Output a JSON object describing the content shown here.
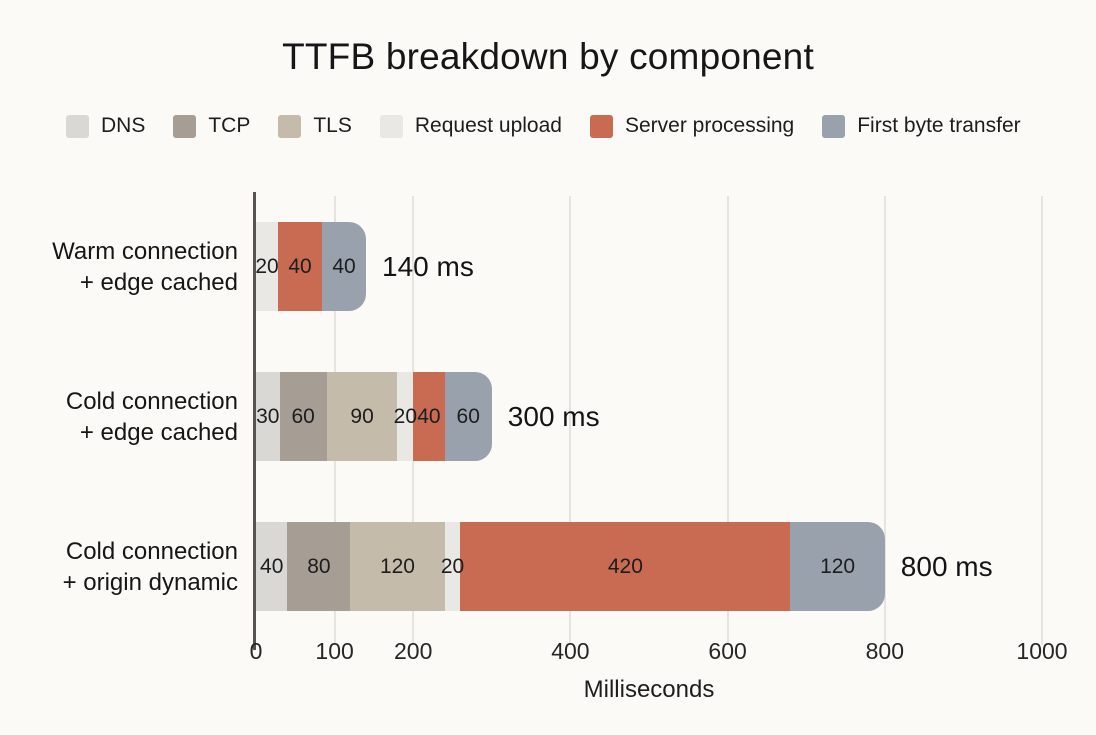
{
  "chart_data": {
    "type": "bar",
    "orientation": "horizontal-stacked",
    "title": "TTFB breakdown by component",
    "xlabel": "Milliseconds",
    "xlim": [
      0,
      1000
    ],
    "x_ticks": [
      0,
      100,
      200,
      400,
      600,
      800,
      1000
    ],
    "grid": true,
    "legend_position": "top-left",
    "categories": [
      "Warm connection + edge cached",
      "Cold connection + edge cached",
      "Cold connection + origin dynamic"
    ],
    "category_lines": [
      [
        "Warm connection",
        "+ edge cached"
      ],
      [
        "Cold connection",
        "+ edge cached"
      ],
      [
        "Cold connection",
        "+ origin dynamic"
      ]
    ],
    "series": [
      {
        "name": "DNS",
        "color": "#d9d8d5",
        "values": [
          0,
          30,
          40
        ]
      },
      {
        "name": "TCP",
        "color": "#a69d95",
        "values": [
          0,
          60,
          80
        ]
      },
      {
        "name": "TLS",
        "color": "#c4bbaa",
        "values": [
          0,
          90,
          120
        ]
      },
      {
        "name": "Request upload",
        "color": "#e9e8e4",
        "values": [
          20,
          20,
          20
        ]
      },
      {
        "name": "Server processing",
        "color": "#c96b53",
        "values": [
          40,
          40,
          420
        ]
      },
      {
        "name": "First byte transfer",
        "color": "#99a2ac",
        "values": [
          40,
          60,
          120
        ]
      }
    ],
    "totals_ms": [
      140,
      300,
      800
    ],
    "total_labels": [
      "140 ms",
      "300 ms",
      "800 ms"
    ]
  },
  "style_colors": {
    "background": "#fbfaf7",
    "axis_line": "#57544f",
    "gridline": "#e6e4e0",
    "text": "#1b1b1b"
  }
}
